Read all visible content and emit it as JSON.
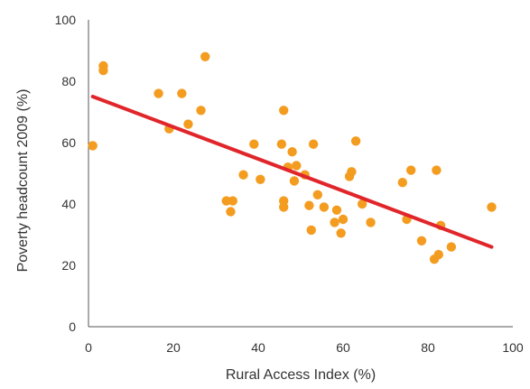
{
  "chart_data": {
    "type": "scatter",
    "title": "",
    "xlabel": "Rural Access Index (%)",
    "ylabel": "Poverty headcount 2009 (%)",
    "xlim": [
      0,
      100
    ],
    "ylim": [
      0,
      100
    ],
    "xticks": [
      "0",
      "20",
      "40",
      "60",
      "80",
      "100"
    ],
    "yticks": [
      "0",
      "20",
      "40",
      "60",
      "80",
      "100"
    ],
    "grid": false,
    "legend": "none",
    "colors": {
      "points": "#F39C1F",
      "trend": "#E0262B",
      "axis": "#555555"
    },
    "points": [
      [
        1,
        59
      ],
      [
        3.5,
        85
      ],
      [
        3.5,
        83.5
      ],
      [
        16.5,
        76
      ],
      [
        19,
        64.5
      ],
      [
        22,
        76
      ],
      [
        23.5,
        66
      ],
      [
        26.5,
        70.5
      ],
      [
        27.5,
        88
      ],
      [
        32.5,
        41
      ],
      [
        33.5,
        37.5
      ],
      [
        34,
        41
      ],
      [
        36.5,
        49.5
      ],
      [
        39,
        59.5
      ],
      [
        40.5,
        48
      ],
      [
        45.5,
        59.5
      ],
      [
        46,
        70.5
      ],
      [
        46,
        41
      ],
      [
        46,
        39
      ],
      [
        47,
        52
      ],
      [
        48,
        57
      ],
      [
        48.5,
        47.5
      ],
      [
        49,
        52.5
      ],
      [
        51,
        49.5
      ],
      [
        52,
        39.5
      ],
      [
        52.5,
        31.5
      ],
      [
        53,
        59.5
      ],
      [
        54,
        43
      ],
      [
        55.5,
        39
      ],
      [
        58,
        34
      ],
      [
        58.5,
        38
      ],
      [
        59.5,
        30.5
      ],
      [
        60,
        35
      ],
      [
        61.5,
        49
      ],
      [
        62,
        50.5
      ],
      [
        63,
        60.5
      ],
      [
        64.5,
        40
      ],
      [
        66.5,
        34
      ],
      [
        74,
        47
      ],
      [
        75,
        35
      ],
      [
        76,
        51
      ],
      [
        78.5,
        28
      ],
      [
        81.5,
        22
      ],
      [
        82,
        51
      ],
      [
        82.5,
        23.5
      ],
      [
        83,
        33
      ],
      [
        85.5,
        26
      ],
      [
        95,
        39
      ]
    ],
    "trendline": {
      "x": [
        1,
        95
      ],
      "y": [
        75,
        26
      ]
    }
  }
}
